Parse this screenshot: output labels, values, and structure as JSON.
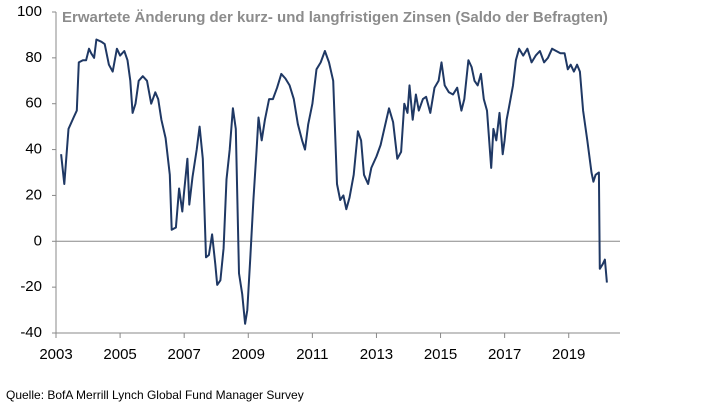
{
  "chart_data": {
    "type": "line",
    "title": "Erwartete Änderung der kurz- und langfristigen Zinsen (Saldo der Befragten)",
    "source": "Quelle: BofA Merrill Lynch Global Fund Manager Survey",
    "xlim": [
      2003,
      2020.6
    ],
    "xticks": [
      2003,
      2005,
      2007,
      2009,
      2011,
      2013,
      2015,
      2017,
      2019
    ],
    "ylim": [
      -40,
      100
    ],
    "yticks": [
      -40,
      -20,
      0,
      20,
      40,
      60,
      80,
      100
    ],
    "x": [
      2003.16,
      2003.26,
      2003.39,
      2003.55,
      2003.65,
      2003.71,
      2003.84,
      2003.94,
      2004.03,
      2004.1,
      2004.19,
      2004.26,
      2004.42,
      2004.52,
      2004.65,
      2004.77,
      2004.9,
      2005.0,
      2005.13,
      2005.23,
      2005.32,
      2005.39,
      2005.48,
      2005.58,
      2005.71,
      2005.84,
      2005.97,
      2006.1,
      2006.19,
      2006.29,
      2006.42,
      2006.55,
      2006.61,
      2006.74,
      2006.84,
      2006.94,
      2007.0,
      2007.1,
      2007.16,
      2007.26,
      2007.39,
      2007.48,
      2007.58,
      2007.68,
      2007.77,
      2007.87,
      2007.97,
      2008.03,
      2008.13,
      2008.23,
      2008.32,
      2008.42,
      2008.52,
      2008.61,
      2008.71,
      2008.81,
      2008.9,
      2008.97,
      2009.06,
      2009.16,
      2009.26,
      2009.32,
      2009.42,
      2009.52,
      2009.65,
      2009.77,
      2009.9,
      2010.03,
      2010.16,
      2010.29,
      2010.42,
      2010.55,
      2010.68,
      2010.77,
      2010.87,
      2011.0,
      2011.13,
      2011.26,
      2011.39,
      2011.52,
      2011.65,
      2011.77,
      2011.87,
      2011.97,
      2012.06,
      2012.16,
      2012.29,
      2012.42,
      2012.52,
      2012.61,
      2012.74,
      2012.84,
      2013.0,
      2013.13,
      2013.26,
      2013.39,
      2013.52,
      2013.65,
      2013.77,
      2013.87,
      2013.97,
      2014.03,
      2014.13,
      2014.23,
      2014.32,
      2014.45,
      2014.55,
      2014.68,
      2014.81,
      2014.94,
      2015.03,
      2015.13,
      2015.26,
      2015.39,
      2015.52,
      2015.65,
      2015.74,
      2015.87,
      2015.97,
      2016.06,
      2016.16,
      2016.26,
      2016.35,
      2016.45,
      2016.58,
      2016.65,
      2016.74,
      2016.84,
      2016.94,
      2017.0,
      2017.06,
      2017.13,
      2017.26,
      2017.35,
      2017.45,
      2017.58,
      2017.71,
      2017.84,
      2017.97,
      2018.1,
      2018.23,
      2018.35,
      2018.48,
      2018.61,
      2018.74,
      2018.87,
      2018.97,
      2019.06,
      2019.16,
      2019.26,
      2019.35,
      2019.45,
      2019.58,
      2019.71,
      2019.77,
      2019.84,
      2019.94,
      2019.97,
      2020.06,
      2020.13,
      2020.19
    ],
    "series": [
      {
        "color": "#1f3864",
        "values": [
          38,
          25,
          49,
          54,
          57,
          78,
          79,
          79,
          84,
          82,
          80,
          88,
          87,
          86,
          77,
          74,
          84,
          81,
          83,
          79,
          70,
          56,
          60,
          70,
          72,
          70,
          60,
          65,
          62,
          53,
          45,
          29,
          5,
          6,
          23,
          13,
          22,
          36,
          16,
          28,
          40,
          50,
          36,
          -7,
          -6,
          3,
          -10,
          -19,
          -17,
          -3,
          27,
          40,
          58,
          49,
          -14,
          -23,
          -36,
          -30,
          -8,
          18,
          40,
          54,
          44,
          53,
          62,
          62,
          67,
          73,
          71,
          68,
          62,
          51,
          44,
          40,
          51,
          60,
          75,
          78,
          83,
          78,
          70,
          25,
          18,
          20,
          14,
          19,
          29,
          48,
          44,
          29,
          25,
          32,
          37,
          42,
          50,
          58,
          52,
          36,
          39,
          60,
          56,
          68,
          53,
          64,
          57,
          62,
          63,
          56,
          67,
          70,
          78,
          68,
          65,
          64,
          67,
          57,
          62,
          79,
          76,
          70,
          68,
          73,
          62,
          57,
          32,
          49,
          44,
          56,
          38,
          44,
          53,
          58,
          68,
          79,
          84,
          81,
          84,
          78,
          81,
          83,
          78,
          80,
          84,
          83,
          82,
          82,
          75,
          77,
          74,
          77,
          74,
          57,
          44,
          30,
          26,
          29,
          30,
          -12,
          -10,
          -8,
          -18
        ]
      }
    ]
  }
}
